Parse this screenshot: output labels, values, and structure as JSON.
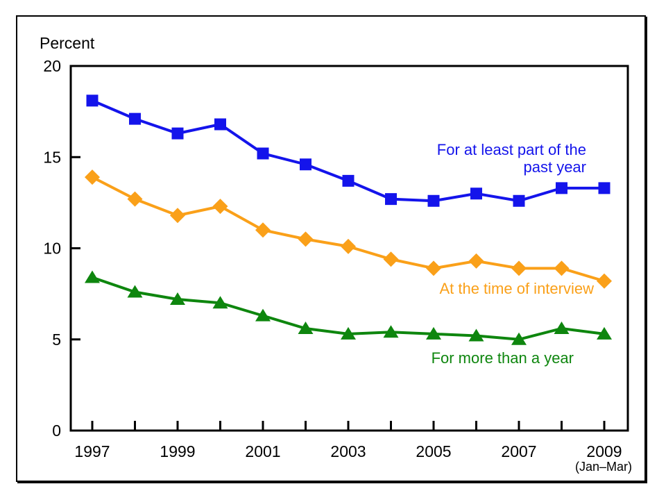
{
  "chart_data": {
    "type": "line",
    "title": "",
    "ylabel": "Percent",
    "xlabel": "",
    "x_note": "(Jan–Mar)",
    "ylim": [
      0,
      20
    ],
    "y_ticks": [
      0,
      5,
      10,
      15,
      20
    ],
    "grid": false,
    "legend_position": "inline-annotations",
    "x": [
      1997,
      1998,
      1999,
      2000,
      2001,
      2002,
      2003,
      2004,
      2005,
      2006,
      2007,
      2008,
      2009
    ],
    "x_labeled_years": [
      1997,
      1999,
      2001,
      2003,
      2005,
      2007,
      2009
    ],
    "series": [
      {
        "name": "For at least part of the past year",
        "label_lines": [
          "For at least part of the",
          "past year"
        ],
        "marker": "square",
        "color": "#1414EB",
        "values": [
          18.1,
          17.1,
          16.3,
          16.8,
          15.2,
          14.6,
          13.7,
          12.7,
          12.6,
          13.0,
          12.6,
          13.3,
          13.3
        ]
      },
      {
        "name": "At the time of interview",
        "label_lines": [
          "At the time of interview"
        ],
        "marker": "diamond",
        "color": "#FAA019",
        "values": [
          13.9,
          12.7,
          11.8,
          12.3,
          11.0,
          10.5,
          10.1,
          9.4,
          8.9,
          9.3,
          8.9,
          8.9,
          8.2
        ]
      },
      {
        "name": "For more than a year",
        "label_lines": [
          "For more than a year"
        ],
        "marker": "triangle",
        "color": "#0E860E",
        "values": [
          8.4,
          7.6,
          7.2,
          7.0,
          6.3,
          5.6,
          5.3,
          5.4,
          5.3,
          5.2,
          5.0,
          5.6,
          5.3
        ]
      }
    ]
  }
}
